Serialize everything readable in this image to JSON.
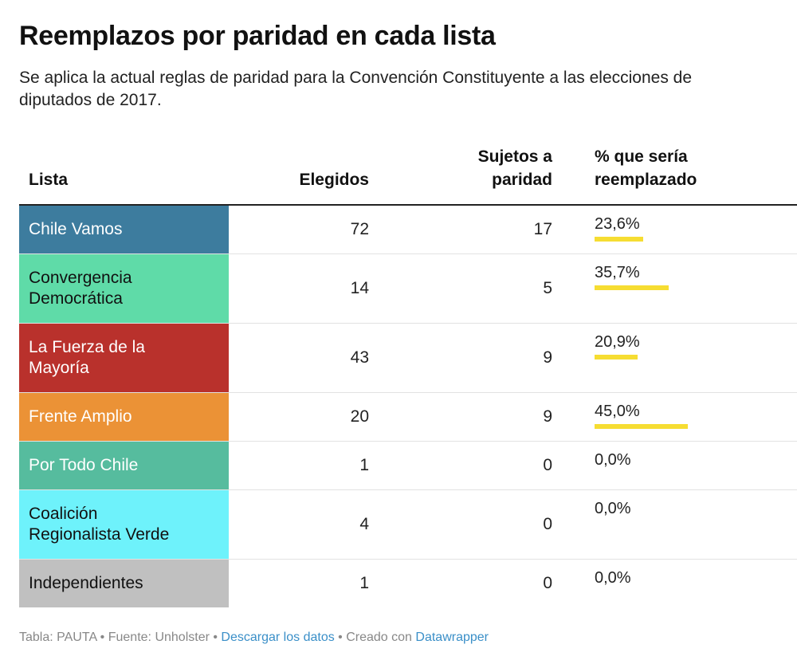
{
  "title": "Reemplazos por paridad en cada lista",
  "subtitle": "Se aplica la actual reglas de paridad para la Convención Constituyente a las elecciones de diputados de 2017.",
  "headers": {
    "lista": "Lista",
    "elegidos": "Elegidos",
    "sujetos_line1": "Sujetos a",
    "sujetos_line2": "paridad",
    "pct_line1": "% que sería",
    "pct_line2": "reemplazado"
  },
  "bar_color": "#f6dd32",
  "rows": [
    {
      "name_lines": [
        "Chile Vamos"
      ],
      "elegidos": "72",
      "sujetos": "17",
      "pct": "23,6%",
      "pct_value": 23.6,
      "color": "#3d7c9e",
      "text_color": "#ffffff",
      "height": 60
    },
    {
      "name_lines": [
        "Convergencia",
        "Democrática"
      ],
      "elegidos": "14",
      "sujetos": "5",
      "pct": "35,7%",
      "pct_value": 35.7,
      "color": "#5fdba8",
      "text_color": "#111111",
      "height": 86
    },
    {
      "name_lines": [
        "La Fuerza de la",
        "Mayoría"
      ],
      "elegidos": "43",
      "sujetos": "9",
      "pct": "20,9%",
      "pct_value": 20.9,
      "color": "#b9312c",
      "text_color": "#ffffff",
      "height": 86
    },
    {
      "name_lines": [
        "Frente Amplio"
      ],
      "elegidos": "20",
      "sujetos": "9",
      "pct": "45,0%",
      "pct_value": 45.0,
      "color": "#eb9236",
      "text_color": "#ffffff",
      "height": 60
    },
    {
      "name_lines": [
        "Por Todo Chile"
      ],
      "elegidos": "1",
      "sujetos": "0",
      "pct": "0,0%",
      "pct_value": 0.0,
      "color": "#56bc9e",
      "text_color": "#ffffff",
      "height": 60
    },
    {
      "name_lines": [
        "Coalición",
        "Regionalista Verde"
      ],
      "elegidos": "4",
      "sujetos": "0",
      "pct": "0,0%",
      "pct_value": 0.0,
      "color": "#6ef2fb",
      "text_color": "#111111",
      "height": 86
    },
    {
      "name_lines": [
        "Independientes"
      ],
      "elegidos": "1",
      "sujetos": "0",
      "pct": "0,0%",
      "pct_value": 0.0,
      "color": "#c0c0c0",
      "text_color": "#111111",
      "height": 60
    }
  ],
  "footer": {
    "tabla": "Tabla: PAUTA",
    "sep1": " • ",
    "fuente": "Fuente: Unholster",
    "sep2": " • ",
    "descargar": "Descargar los datos",
    "sep3": " • ",
    "creado": "Creado con ",
    "datawrapper": "Datawrapper"
  },
  "chart_data": {
    "type": "table",
    "title": "Reemplazos por paridad en cada lista",
    "columns": [
      "Lista",
      "Elegidos",
      "Sujetos a paridad",
      "% que sería reemplazado"
    ],
    "rows": [
      [
        "Chile Vamos",
        72,
        17,
        23.6
      ],
      [
        "Convergencia Democrática",
        14,
        5,
        35.7
      ],
      [
        "La Fuerza de la Mayoría",
        43,
        9,
        20.9
      ],
      [
        "Frente Amplio",
        20,
        9,
        45.0
      ],
      [
        "Por Todo Chile",
        1,
        0,
        0.0
      ],
      [
        "Coalición Regionalista Verde",
        4,
        0,
        0.0
      ],
      [
        "Independientes",
        1,
        0,
        0.0
      ]
    ]
  }
}
